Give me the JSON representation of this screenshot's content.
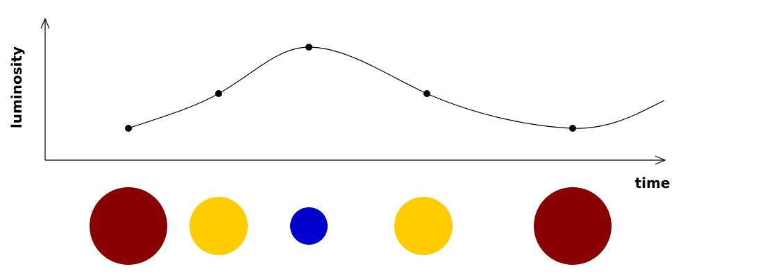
{
  "diagram": {
    "y_axis_label": "luminosity",
    "x_axis_label": "time",
    "colors": {
      "line": "#000000",
      "red": "#880000",
      "yellow": "#ffcc00",
      "blue": "#0000cc"
    },
    "stars": [
      {
        "color": "red",
        "size": "large"
      },
      {
        "color": "yellow",
        "size": "medium"
      },
      {
        "color": "blue",
        "size": "small"
      },
      {
        "color": "yellow",
        "size": "medium"
      },
      {
        "color": "red",
        "size": "large"
      }
    ]
  }
}
